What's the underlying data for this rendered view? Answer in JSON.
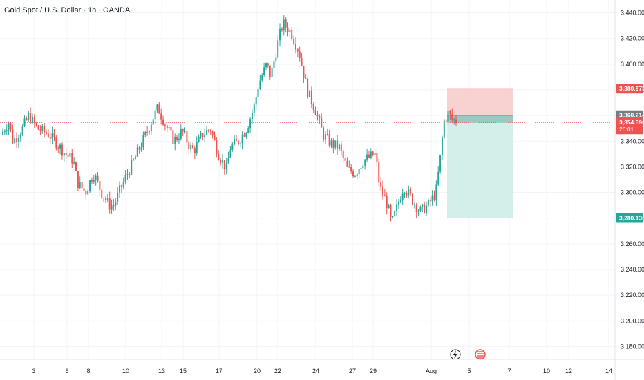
{
  "header": {
    "title": "Gold Spot / U.S. Dollar · 1h · OANDA"
  },
  "colors": {
    "up": "#26a69a",
    "down": "#ef5350",
    "grid": "#f0f3fa",
    "axis_text": "#131722",
    "stop_zone": "#f7c9c9",
    "target_zone": "#cdebe5",
    "entry_line": "#787b86",
    "current_price": "#ef5350"
  },
  "chart_data": {
    "type": "candlestick",
    "timeframe": "1h",
    "ylim": [
      3170,
      3450
    ],
    "y_ticks": [
      3180,
      3200,
      3220,
      3240,
      3260,
      3280,
      3300,
      3320,
      3340,
      3360,
      3380,
      3400,
      3420,
      3440
    ],
    "y_tick_labels": [
      "3,180.000",
      "3,200.000",
      "3,220.000",
      "3,240.000",
      "3,260.000",
      "3,280.000",
      "3,300.000",
      "3,320.000",
      "3,340.000",
      "3,360.000",
      "3,380.000",
      "3,400.000",
      "3,420.000",
      "3,440.000"
    ],
    "x_ticks": [
      "3",
      "6",
      "8",
      "10",
      "13",
      "15",
      "17",
      "20",
      "22",
      "24",
      "27",
      "29",
      "Aug",
      "5",
      "7",
      "10",
      "12",
      "14"
    ],
    "price_path": [
      [
        0,
        3345
      ],
      [
        2,
        3355
      ],
      [
        3,
        3340
      ],
      [
        5,
        3348
      ],
      [
        7,
        3360
      ],
      [
        9,
        3350
      ],
      [
        12,
        3345
      ],
      [
        14,
        3338
      ],
      [
        16,
        3330
      ],
      [
        18,
        3325
      ],
      [
        19,
        3308
      ],
      [
        21,
        3300
      ],
      [
        23,
        3315
      ],
      [
        25,
        3300
      ],
      [
        27,
        3290
      ],
      [
        28,
        3290
      ],
      [
        30,
        3305
      ],
      [
        33,
        3325
      ],
      [
        36,
        3345
      ],
      [
        38,
        3360
      ],
      [
        39,
        3366
      ],
      [
        41,
        3352
      ],
      [
        43,
        3340
      ],
      [
        45,
        3348
      ],
      [
        47,
        3335
      ],
      [
        48,
        3333
      ],
      [
        50,
        3345
      ],
      [
        52,
        3350
      ],
      [
        54,
        3330
      ],
      [
        56,
        3318
      ],
      [
        57,
        3335
      ],
      [
        59,
        3340
      ],
      [
        61,
        3350
      ],
      [
        63,
        3368
      ],
      [
        64,
        3385
      ],
      [
        66,
        3400
      ],
      [
        67,
        3390
      ],
      [
        69,
        3420
      ],
      [
        70,
        3432
      ],
      [
        72,
        3425
      ],
      [
        74,
        3410
      ],
      [
        75,
        3395
      ],
      [
        76,
        3380
      ],
      [
        78,
        3365
      ],
      [
        80,
        3345
      ],
      [
        82,
        3338
      ],
      [
        84,
        3335
      ],
      [
        86,
        3318
      ],
      [
        88,
        3315
      ],
      [
        90,
        3325
      ],
      [
        93,
        3330
      ],
      [
        94,
        3305
      ],
      [
        96,
        3290
      ],
      [
        97,
        3275
      ],
      [
        98,
        3285
      ],
      [
        100,
        3305
      ],
      [
        102,
        3295
      ],
      [
        104,
        3285
      ],
      [
        106,
        3290
      ],
      [
        108,
        3300
      ],
      [
        109,
        3325
      ],
      [
        110,
        3355
      ],
      [
        111,
        3362
      ],
      [
        112,
        3357
      ],
      [
        113,
        3356
      ]
    ],
    "position": {
      "type": "long",
      "entry": 3360.214,
      "stop": 3380.975,
      "target": 3280.136,
      "entry_label": "3,360.214",
      "stop_label": "3,380.975",
      "target_label": "3,280.136"
    },
    "current_price": 3354.59,
    "current_price_label": "3,354.590",
    "countdown": "26:01",
    "annotations": [
      "lightning-event-icon",
      "us-flag-event-icon"
    ]
  }
}
